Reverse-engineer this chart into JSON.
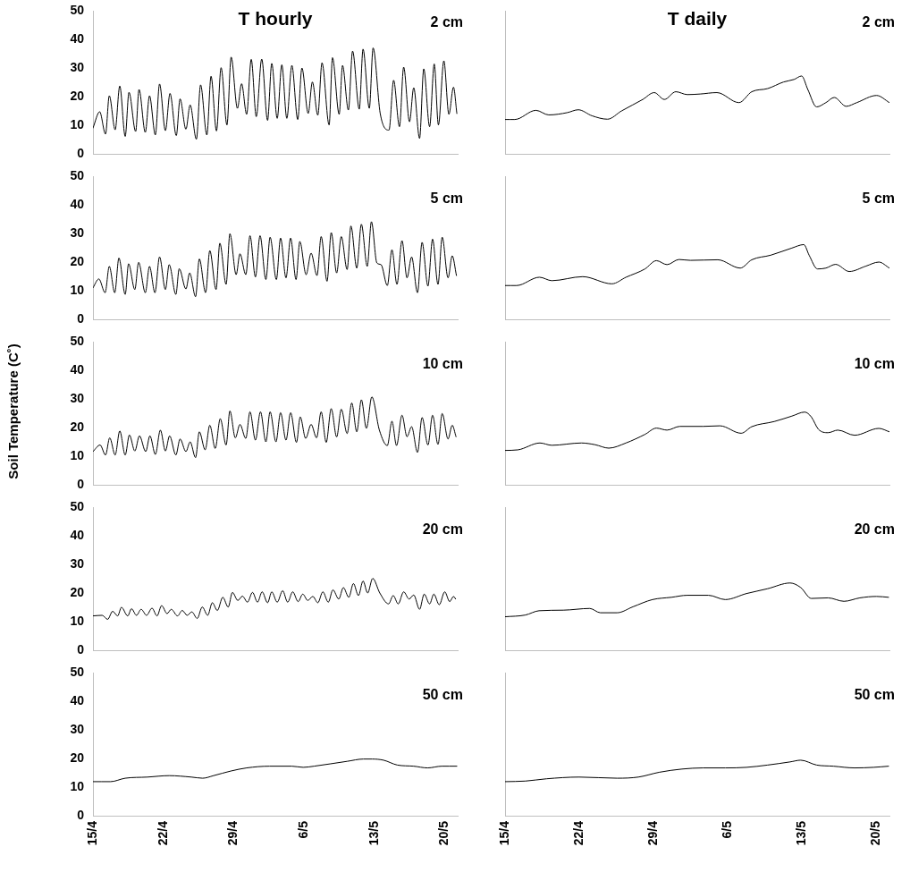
{
  "chart_data": [
    {
      "type": "line",
      "title": "T hourly",
      "annotations": [
        "2 cm"
      ],
      "color": "#000000",
      "xlim": [
        "--04-15",
        "--05-21T07:00"
      ],
      "ylim": [
        0,
        50
      ],
      "yticks": [
        0,
        10,
        20,
        30,
        40,
        50
      ],
      "tick_labels": "y",
      "x": [
        "--04-15T00:00",
        "--04-15T16:00",
        "--04-16T06:00",
        "--04-16T15:00",
        "--04-17T05:00",
        "--04-17T16:00",
        "--04-18T05:00",
        "--04-18T14:00",
        "--04-19T06:00",
        "--04-19T14:00",
        "--04-20T05:00",
        "--04-20T15:00",
        "--04-21T05:00",
        "--04-21T15:00",
        "--04-22T05:00",
        "--04-22T16:00",
        "--04-23T07:00",
        "--04-23T16:00",
        "--04-24T06:00",
        "--04-24T16:00",
        "--04-25T07:00",
        "--04-25T17:00",
        "--04-26T08:00",
        "--04-26T18:00",
        "--04-27T07:00",
        "--04-27T18:00",
        "--04-28T08:00",
        "--04-28T18:00",
        "--04-29T09:00",
        "--04-29T19:00",
        "--04-30T07:00",
        "--04-30T18:00",
        "--05-01T06:00",
        "--05-01T19:00",
        "--05-02T09:00",
        "--05-02T19:00",
        "--05-03T08:00",
        "--05-03T19:00",
        "--05-04T07:00",
        "--05-04T19:00",
        "--05-05T09:00",
        "--05-05T19:00",
        "--05-06T10:00",
        "--05-06T20:00",
        "--05-07T09:00",
        "--05-07T19:00",
        "--05-08T12:00",
        "--05-08T20:00",
        "--05-09T12:00",
        "--05-09T20:00",
        "--05-10T10:00",
        "--05-10T20:00",
        "--05-11T12:00",
        "--05-11T21:00",
        "--05-12T12:00",
        "--05-12T21:00",
        "--05-13T14:00",
        "--05-14T11:00",
        "--05-14T22:00",
        "--05-15T12:00",
        "--05-15T22:00",
        "--05-16T12:00",
        "--05-16T22:00",
        "--05-17T12:00",
        "--05-17T22:00",
        "--05-18T12:00",
        "--05-18T23:00",
        "--05-19T09:00",
        "--05-19T22:00",
        "--05-20T10:00",
        "--05-20T21:00",
        "--05-21T05:00"
      ],
      "values": [
        9,
        14.7,
        6.9,
        20.3,
        8.4,
        23.7,
        6.1,
        21.5,
        7.8,
        22.5,
        7.5,
        20.3,
        6.6,
        24.4,
        8.1,
        21.1,
        6.4,
        19.2,
        8.6,
        17.1,
        5.1,
        24.1,
        6.6,
        27.1,
        8,
        30.1,
        10.1,
        33.8,
        15.9,
        24.5,
        13.8,
        33,
        13,
        33.1,
        11.7,
        31.6,
        12.4,
        31.1,
        12.4,
        30.9,
        12,
        30,
        14.1,
        25.1,
        13.5,
        31.8,
        10.1,
        33.6,
        13.8,
        30.9,
        15.3,
        35.9,
        15.6,
        36.6,
        15.9,
        37,
        14.1,
        8.3,
        25.7,
        9.5,
        30.3,
        11.2,
        23.1,
        5.4,
        29.7,
        9.5,
        31.4,
        10.1,
        32.5,
        13.8,
        23.3,
        14.1
      ]
    },
    {
      "type": "line",
      "title": "T daily",
      "annotations": [
        "2 cm"
      ],
      "color": "#000000",
      "xlim": [
        "--04-15",
        "--05-21T07:00"
      ],
      "ylim": [
        0,
        50
      ],
      "yticks": [
        0,
        10,
        20,
        30,
        40,
        50
      ],
      "tick_labels": false,
      "x": [
        "--04-15T00:00",
        "--04-15T22:00",
        "--04-17T22:00",
        "--04-19T03:00",
        "--04-20T21:00",
        "--04-21T22:00",
        "--04-23T05:00",
        "--04-24T16:00",
        "--04-26T00:00",
        "--04-28T00:00",
        "--04-29T02:00",
        "--04-30T01:00",
        "--05-01T03:00",
        "--05-02T05:00",
        "--05-03T10:00",
        "--05-05T00:00",
        "--05-07T02:00",
        "--05-08T07:00",
        "--05-09T19:00",
        "--05-11T07:00",
        "--05-12T07:00",
        "--05-13T00:00",
        "--05-13T14:00",
        "--05-14T10:00",
        "--05-15T07:00",
        "--05-16T02:00",
        "--05-17T05:00",
        "--05-18T05:00",
        "--05-20T02:00",
        "--05-21T07:00"
      ],
      "values": [
        12,
        12,
        15.2,
        13.6,
        14.4,
        15.4,
        13.3,
        12.1,
        15,
        19,
        21.4,
        19,
        21.7,
        20.7,
        20.9,
        21.4,
        17.9,
        21.7,
        22.8,
        25.1,
        26,
        27.2,
        22.5,
        16.4,
        17.9,
        19.7,
        16.6,
        17.9,
        20.4,
        17.9
      ]
    },
    {
      "type": "line",
      "annotations": [
        "5 cm"
      ],
      "color": "#000000",
      "xlim": [
        "--04-15",
        "--05-21T07:00"
      ],
      "ylim": [
        0,
        50
      ],
      "yticks": [
        0,
        10,
        20,
        30,
        40,
        50
      ],
      "tick_labels": "y",
      "x": [
        "--04-15T00:00",
        "--04-15T14:00",
        "--04-16T05:00",
        "--04-16T15:00",
        "--04-17T04:00",
        "--04-17T14:00",
        "--04-18T05:00",
        "--04-18T13:00",
        "--04-19T04:00",
        "--04-19T13:00",
        "--04-20T05:00",
        "--04-20T15:00",
        "--04-21T04:00",
        "--04-21T15:00",
        "--04-22T05:00",
        "--04-22T14:00",
        "--04-23T06:00",
        "--04-23T14:00",
        "--04-24T06:00",
        "--04-24T15:00",
        "--04-25T05:00",
        "--04-25T14:00",
        "--04-26T05:00",
        "--04-26T15:00",
        "--04-27T06:00",
        "--04-27T15:00",
        "--04-28T06:00",
        "--04-28T15:00",
        "--04-29T06:00",
        "--04-29T15:00",
        "--04-30T05:00",
        "--04-30T15:00",
        "--05-01T04:00",
        "--05-01T15:00",
        "--05-02T05:00",
        "--05-02T15:00",
        "--05-03T06:00",
        "--05-03T16:00",
        "--05-04T05:00",
        "--05-04T16:00",
        "--05-05T05:00",
        "--05-05T14:00",
        "--05-06T05:00",
        "--05-06T17:00",
        "--05-07T07:00",
        "--05-07T17:00",
        "--05-08T07:00",
        "--05-08T17:00",
        "--05-09T06:00",
        "--05-09T17:00",
        "--05-10T07:00",
        "--05-10T16:00",
        "--05-11T06:00",
        "--05-11T17:00",
        "--05-12T07:00",
        "--05-12T17:00",
        "--05-13T06:00",
        "--05-13T16:00",
        "--05-14T07:00",
        "--05-14T18:00",
        "--05-15T06:00",
        "--05-15T18:00",
        "--05-16T06:00",
        "--05-16T17:00",
        "--05-17T07:00",
        "--05-17T18:00",
        "--05-18T08:00",
        "--05-18T19:00",
        "--05-19T08:00",
        "--05-19T18:00",
        "--05-20T08:00",
        "--05-20T18:00",
        "--05-21T04:00"
      ],
      "values": [
        11,
        14.1,
        9.3,
        18.5,
        9.3,
        21.4,
        8.7,
        19.4,
        10.4,
        19.9,
        9.3,
        18.5,
        9.3,
        21.8,
        10.4,
        19.1,
        8.7,
        17.7,
        10.6,
        16.2,
        7.9,
        21.1,
        9.3,
        24,
        10.4,
        26.6,
        12.2,
        29.9,
        15.6,
        22.9,
        15.6,
        29.2,
        14.8,
        29.2,
        13.9,
        28.7,
        13.9,
        28.4,
        14.5,
        28.4,
        13.9,
        27.2,
        15.6,
        23.1,
        15.3,
        28.9,
        13.3,
        30.3,
        16.2,
        28.9,
        17.4,
        32.6,
        17.9,
        33.2,
        18.5,
        34.1,
        19.7,
        19.1,
        11.8,
        24.3,
        12.2,
        27.5,
        14.5,
        21.8,
        9.3,
        26.9,
        11.6,
        28,
        12.2,
        28.7,
        14.5,
        22.2,
        15.3
      ]
    },
    {
      "type": "line",
      "annotations": [
        "5 cm"
      ],
      "color": "#000000",
      "xlim": [
        "--04-15",
        "--05-21T07:00"
      ],
      "ylim": [
        0,
        50
      ],
      "yticks": [
        0,
        10,
        20,
        30,
        40,
        50
      ],
      "tick_labels": false,
      "x": [
        "--04-15T00:00",
        "--04-16T02:00",
        "--04-18T06:00",
        "--04-19T10:00",
        "--04-22T08:00",
        "--04-25T02:00",
        "--04-26T10:00",
        "--04-28T05:00",
        "--04-29T07:00",
        "--04-30T07:00",
        "--05-01T10:00",
        "--05-02T12:00",
        "--05-05T02:00",
        "--05-07T05:00",
        "--05-08T07:00",
        "--05-10T02:00",
        "--05-12T02:00",
        "--05-13T05:00",
        "--05-13T17:00",
        "--05-14T12:00",
        "--05-15T07:00",
        "--05-16T05:00",
        "--05-17T12:00",
        "--05-19T02:00",
        "--05-20T07:00",
        "--05-21T07:00"
      ],
      "values": [
        11.8,
        11.8,
        14.7,
        13.5,
        14.9,
        12.4,
        14.7,
        17.6,
        20.5,
        19.1,
        20.9,
        20.6,
        20.8,
        17.9,
        20.8,
        22.4,
        24.9,
        26.1,
        22.4,
        17.6,
        17.9,
        19.2,
        16.7,
        18.6,
        20,
        17.9
      ]
    },
    {
      "type": "line",
      "annotations": [
        "10 cm"
      ],
      "ylabel": "Soil Temperature (C˚)",
      "color": "#000000",
      "xlim": [
        "--04-15",
        "--05-21T07:00"
      ],
      "ylim": [
        0,
        50
      ],
      "yticks": [
        0,
        10,
        20,
        30,
        40,
        50
      ],
      "tick_labels": "y",
      "x": [
        "--04-15T00:00",
        "--04-15T17:00",
        "--04-16T06:00",
        "--04-16T16:00",
        "--04-17T05:00",
        "--04-17T16:00",
        "--04-18T05:00",
        "--04-18T15:00",
        "--04-19T04:00",
        "--04-19T15:00",
        "--04-20T06:00",
        "--04-20T16:00",
        "--04-21T05:00",
        "--04-21T17:00",
        "--04-22T05:00",
        "--04-22T15:00",
        "--04-23T06:00",
        "--04-23T16:00",
        "--04-24T06:00",
        "--04-24T16:00",
        "--04-25T05:00",
        "--04-25T14:00",
        "--04-26T04:00",
        "--04-26T15:00",
        "--04-27T04:00",
        "--04-27T16:00",
        "--04-28T06:00",
        "--04-28T15:00",
        "--04-29T04:00",
        "--04-29T15:00",
        "--04-30T05:00",
        "--04-30T15:00",
        "--05-01T04:00",
        "--05-01T16:00",
        "--05-02T05:00",
        "--05-02T15:00",
        "--05-03T05:00",
        "--05-03T16:00",
        "--05-04T05:00",
        "--05-04T16:00",
        "--05-05T06:00",
        "--05-05T15:00",
        "--05-06T04:00",
        "--05-06T17:00",
        "--05-07T06:00",
        "--05-07T17:00",
        "--05-08T05:00",
        "--05-08T17:00",
        "--05-09T06:00",
        "--05-09T17:00",
        "--05-10T07:00",
        "--05-10T18:00",
        "--05-11T06:00",
        "--05-11T17:00",
        "--05-12T05:00",
        "--05-12T18:00",
        "--05-13T12:00",
        "--05-14T07:00",
        "--05-14T18:00",
        "--05-15T05:00",
        "--05-15T18:00",
        "--05-16T06:00",
        "--05-16T17:00",
        "--05-17T07:00",
        "--05-17T18:00",
        "--05-18T08:00",
        "--05-18T19:00",
        "--05-19T08:00",
        "--05-19T18:00",
        "--05-20T08:00",
        "--05-20T18:00",
        "--05-21T03:00"
      ],
      "values": [
        11.6,
        13.9,
        10.4,
        16.4,
        10.4,
        18.8,
        10.4,
        17.4,
        11.8,
        17.1,
        11.6,
        17.1,
        10.6,
        19.1,
        11.8,
        17.1,
        10.4,
        16,
        11.6,
        15,
        9.5,
        18.5,
        12.2,
        20.8,
        12.7,
        23.1,
        13.9,
        25.8,
        16.4,
        21.1,
        16.2,
        25.5,
        15.6,
        25.5,
        15,
        25.5,
        15,
        25.2,
        15.6,
        25.2,
        14.8,
        23.7,
        16.2,
        21.1,
        16.4,
        25.5,
        14.8,
        26.6,
        16.7,
        26.4,
        17.9,
        28.6,
        18.5,
        29.7,
        19.7,
        30.7,
        19.1,
        13.7,
        22.2,
        13.7,
        24.3,
        16.8,
        20.3,
        11.3,
        23.5,
        13.9,
        24.3,
        14.1,
        24.9,
        16,
        20.8,
        16.8
      ]
    },
    {
      "type": "line",
      "annotations": [
        "10 cm"
      ],
      "color": "#000000",
      "xlim": [
        "--04-15",
        "--05-21T07:00"
      ],
      "ylim": [
        0,
        50
      ],
      "yticks": [
        0,
        10,
        20,
        30,
        40,
        50
      ],
      "tick_labels": false,
      "x": [
        "--04-15T00:00",
        "--04-16T05:00",
        "--04-18T07:00",
        "--04-19T10:00",
        "--04-22T05:00",
        "--04-23T12:00",
        "--04-24T19:00",
        "--04-26T10:00",
        "--04-28T05:00",
        "--04-29T07:00",
        "--04-30T07:00",
        "--05-01T12:00",
        "--05-03T17:00",
        "--05-05T07:00",
        "--05-07T07:00",
        "--05-08T07:00",
        "--05-10T10:00",
        "--05-12T02:00",
        "--05-13T07:00",
        "--05-13T22:00",
        "--05-14T14:00",
        "--05-15T12:00",
        "--05-16T10:00",
        "--05-18T00:00",
        "--05-20T07:00",
        "--05-21T07:00"
      ],
      "values": [
        12,
        12.2,
        14.6,
        13.8,
        14.6,
        14,
        12.8,
        14.6,
        17.6,
        19.8,
        19.1,
        20.4,
        20.4,
        20.6,
        18,
        20.3,
        22.1,
        24,
        25.4,
        23.7,
        19.4,
        18.2,
        19.1,
        17.3,
        19.7,
        18.5
      ]
    },
    {
      "type": "line",
      "annotations": [
        "20 cm"
      ],
      "color": "#000000",
      "xlim": [
        "--04-15",
        "--05-21T07:00"
      ],
      "ylim": [
        0,
        50
      ],
      "yticks": [
        0,
        10,
        20,
        30,
        40,
        50
      ],
      "tick_labels": "y",
      "x": [
        "--04-15T00:00",
        "--04-15T22:00",
        "--04-16T11:00",
        "--04-16T23:00",
        "--04-17T11:00",
        "--04-17T20:00",
        "--04-18T11:00",
        "--04-18T20:00",
        "--04-19T08:00",
        "--04-19T19:00",
        "--04-20T08:00",
        "--04-20T21:00",
        "--04-21T09:00",
        "--04-21T20:00",
        "--04-22T09:00",
        "--04-22T19:00",
        "--04-23T10:00",
        "--04-23T21:00",
        "--04-24T09:00",
        "--04-24T20:00",
        "--04-25T09:00",
        "--04-25T21:00",
        "--04-26T10:00",
        "--04-26T21:00",
        "--04-27T09:00",
        "--04-27T22:00",
        "--04-28T11:00",
        "--04-28T21:00",
        "--04-29T10:00",
        "--04-29T21:00",
        "--04-30T09:00",
        "--04-30T21:00",
        "--05-01T09:00",
        "--05-01T20:00",
        "--05-02T09:00",
        "--05-02T19:00",
        "--05-03T08:00",
        "--05-03T21:00",
        "--05-04T09:00",
        "--05-04T21:00",
        "--05-05T10:00",
        "--05-05T21:00",
        "--05-06T09:00",
        "--05-06T21:00",
        "--05-07T09:00",
        "--05-07T21:00",
        "--05-08T10:00",
        "--05-08T21:00",
        "--05-09T11:00",
        "--05-09T22:00",
        "--05-10T11:00",
        "--05-10T22:00",
        "--05-11T10:00",
        "--05-11T21:00",
        "--05-12T08:00",
        "--05-12T20:00",
        "--05-13T13:00",
        "--05-14T10:00",
        "--05-14T21:00",
        "--05-15T09:00",
        "--05-15T22:00",
        "--05-16T11:00",
        "--05-16T22:00",
        "--05-17T12:00",
        "--05-17T23:00",
        "--05-18T12:00",
        "--05-18T22:00",
        "--05-19T11:00",
        "--05-20T00:00",
        "--05-20T12:00",
        "--05-20T21:00",
        "--05-21T02:00"
      ],
      "values": [
        12,
        12.2,
        10.8,
        13.6,
        12,
        15,
        12,
        14.5,
        12.2,
        14.3,
        12.2,
        14.7,
        12,
        15.6,
        12.8,
        14.3,
        12,
        13.9,
        12.2,
        13.4,
        11.1,
        15.1,
        12.2,
        16.6,
        13.9,
        18.5,
        15.1,
        20.2,
        17.4,
        18.9,
        16.8,
        20.2,
        16.8,
        20.4,
        16.6,
        20.4,
        16.8,
        20.8,
        16.8,
        20.4,
        17,
        19.6,
        17.4,
        18.8,
        16.6,
        20.4,
        16.8,
        21.1,
        17.9,
        21.9,
        18.5,
        23.3,
        19.1,
        24.2,
        20,
        25.1,
        20,
        16.2,
        19.1,
        16.2,
        20.4,
        17.9,
        19.3,
        14.3,
        19.6,
        16.2,
        19.6,
        15.9,
        20.4,
        17,
        18.8,
        17.9
      ]
    },
    {
      "type": "line",
      "annotations": [
        "20 cm"
      ],
      "color": "#000000",
      "xlim": [
        "--04-15",
        "--05-21T07:00"
      ],
      "ylim": [
        0,
        50
      ],
      "yticks": [
        0,
        10,
        20,
        30,
        40,
        50
      ],
      "tick_labels": false,
      "x": [
        "--04-15T00:00",
        "--04-16T22:00",
        "--04-18T05:00",
        "--04-20T12:00",
        "--04-23T00:00",
        "--04-24T00:00",
        "--04-25T14:00",
        "--04-27T02:00",
        "--04-28T22:00",
        "--04-30T17:00",
        "--05-02T05:00",
        "--05-04T05:00",
        "--05-05T19:00",
        "--05-07T19:00",
        "--05-09T19:00",
        "--05-11T22:00",
        "--05-12T22:00",
        "--05-13T22:00",
        "--05-15T12:00",
        "--05-17T00:00",
        "--05-18T12:00",
        "--05-20T02:00",
        "--05-21T05:00"
      ],
      "values": [
        11.7,
        12.3,
        13.8,
        14,
        14.6,
        13.1,
        13.1,
        15.2,
        17.7,
        18.5,
        19.2,
        19.2,
        17.7,
        19.8,
        21.5,
        23.5,
        21.9,
        18.1,
        18.3,
        17.1,
        18.3,
        18.8,
        18.5
      ]
    },
    {
      "type": "line",
      "annotations": [
        "50 cm"
      ],
      "color": "#000000",
      "xlim": [
        "--04-15",
        "--05-21T07:00"
      ],
      "ylim": [
        0,
        50
      ],
      "yticks": [
        0,
        10,
        20,
        30,
        40,
        50
      ],
      "xticks": [
        {
          "value": "--04-15",
          "label": "15/4"
        },
        {
          "value": "--04-22",
          "label": "22/4"
        },
        {
          "value": "--04-29",
          "label": "29/4"
        },
        {
          "value": "--05-06",
          "label": "6/5"
        },
        {
          "value": "--05-13",
          "label": "13/5"
        },
        {
          "value": "--05-20",
          "label": "20/5"
        }
      ],
      "x": [
        "--04-15T00:00",
        "--04-16T18:00",
        "--04-18T05:00",
        "--04-20T10:00",
        "--04-22T14:00",
        "--04-24T19:00",
        "--04-25T22:00",
        "--04-27T00:00",
        "--04-28T17:00",
        "--04-30T07:00",
        "--05-02T14:00",
        "--05-04T19:00",
        "--05-05T22:00",
        "--05-07T00:00",
        "--05-08T14:00",
        "--05-10T07:00",
        "--05-11T22:00",
        "--05-12T19:00",
        "--05-13T22:00",
        "--05-15T07:00",
        "--05-16T22:00",
        "--05-18T07:00",
        "--05-19T17:00",
        "--05-21T05:00"
      ],
      "values": [
        11.9,
        11.9,
        13.1,
        13.5,
        14,
        13.5,
        13.1,
        14,
        15.6,
        16.7,
        17.3,
        17.3,
        16.9,
        17.3,
        18.1,
        19,
        19.8,
        19.8,
        19.4,
        17.7,
        17.3,
        16.7,
        17.3,
        17.3
      ]
    },
    {
      "type": "line",
      "annotations": [
        "50 cm"
      ],
      "color": "#000000",
      "xlim": [
        "--04-15",
        "--05-21T07:00"
      ],
      "ylim": [
        0,
        50
      ],
      "yticks": [
        0,
        10,
        20,
        30,
        40,
        50
      ],
      "tick_labels": "x",
      "xticks": [
        {
          "value": "--04-15",
          "label": "15/4"
        },
        {
          "value": "--04-22",
          "label": "22/4"
        },
        {
          "value": "--04-29",
          "label": "29/4"
        },
        {
          "value": "--05-06",
          "label": "6/5"
        },
        {
          "value": "--05-13",
          "label": "13/5"
        },
        {
          "value": "--05-20",
          "label": "20/5"
        }
      ],
      "x": [
        "--04-15T00:00",
        "--04-16T22:00",
        "--04-18T22:00",
        "--04-22T00:00",
        "--04-25T14:00",
        "--04-27T14:00",
        "--04-29T14:00",
        "--05-01T17:00",
        "--05-03T17:00",
        "--05-05T19:00",
        "--05-07T19:00",
        "--05-09T19:00",
        "--05-11T22:00",
        "--05-12T22:00",
        "--05-14T10:00",
        "--05-16T00:00",
        "--05-18T00:00",
        "--05-19T19:00",
        "--05-21T05:00"
      ],
      "values": [
        11.9,
        12.1,
        12.9,
        13.5,
        13.1,
        13.5,
        15.2,
        16.3,
        16.7,
        16.7,
        16.9,
        17.7,
        18.8,
        19.4,
        17.7,
        17.3,
        16.7,
        16.9,
        17.3
      ]
    }
  ]
}
